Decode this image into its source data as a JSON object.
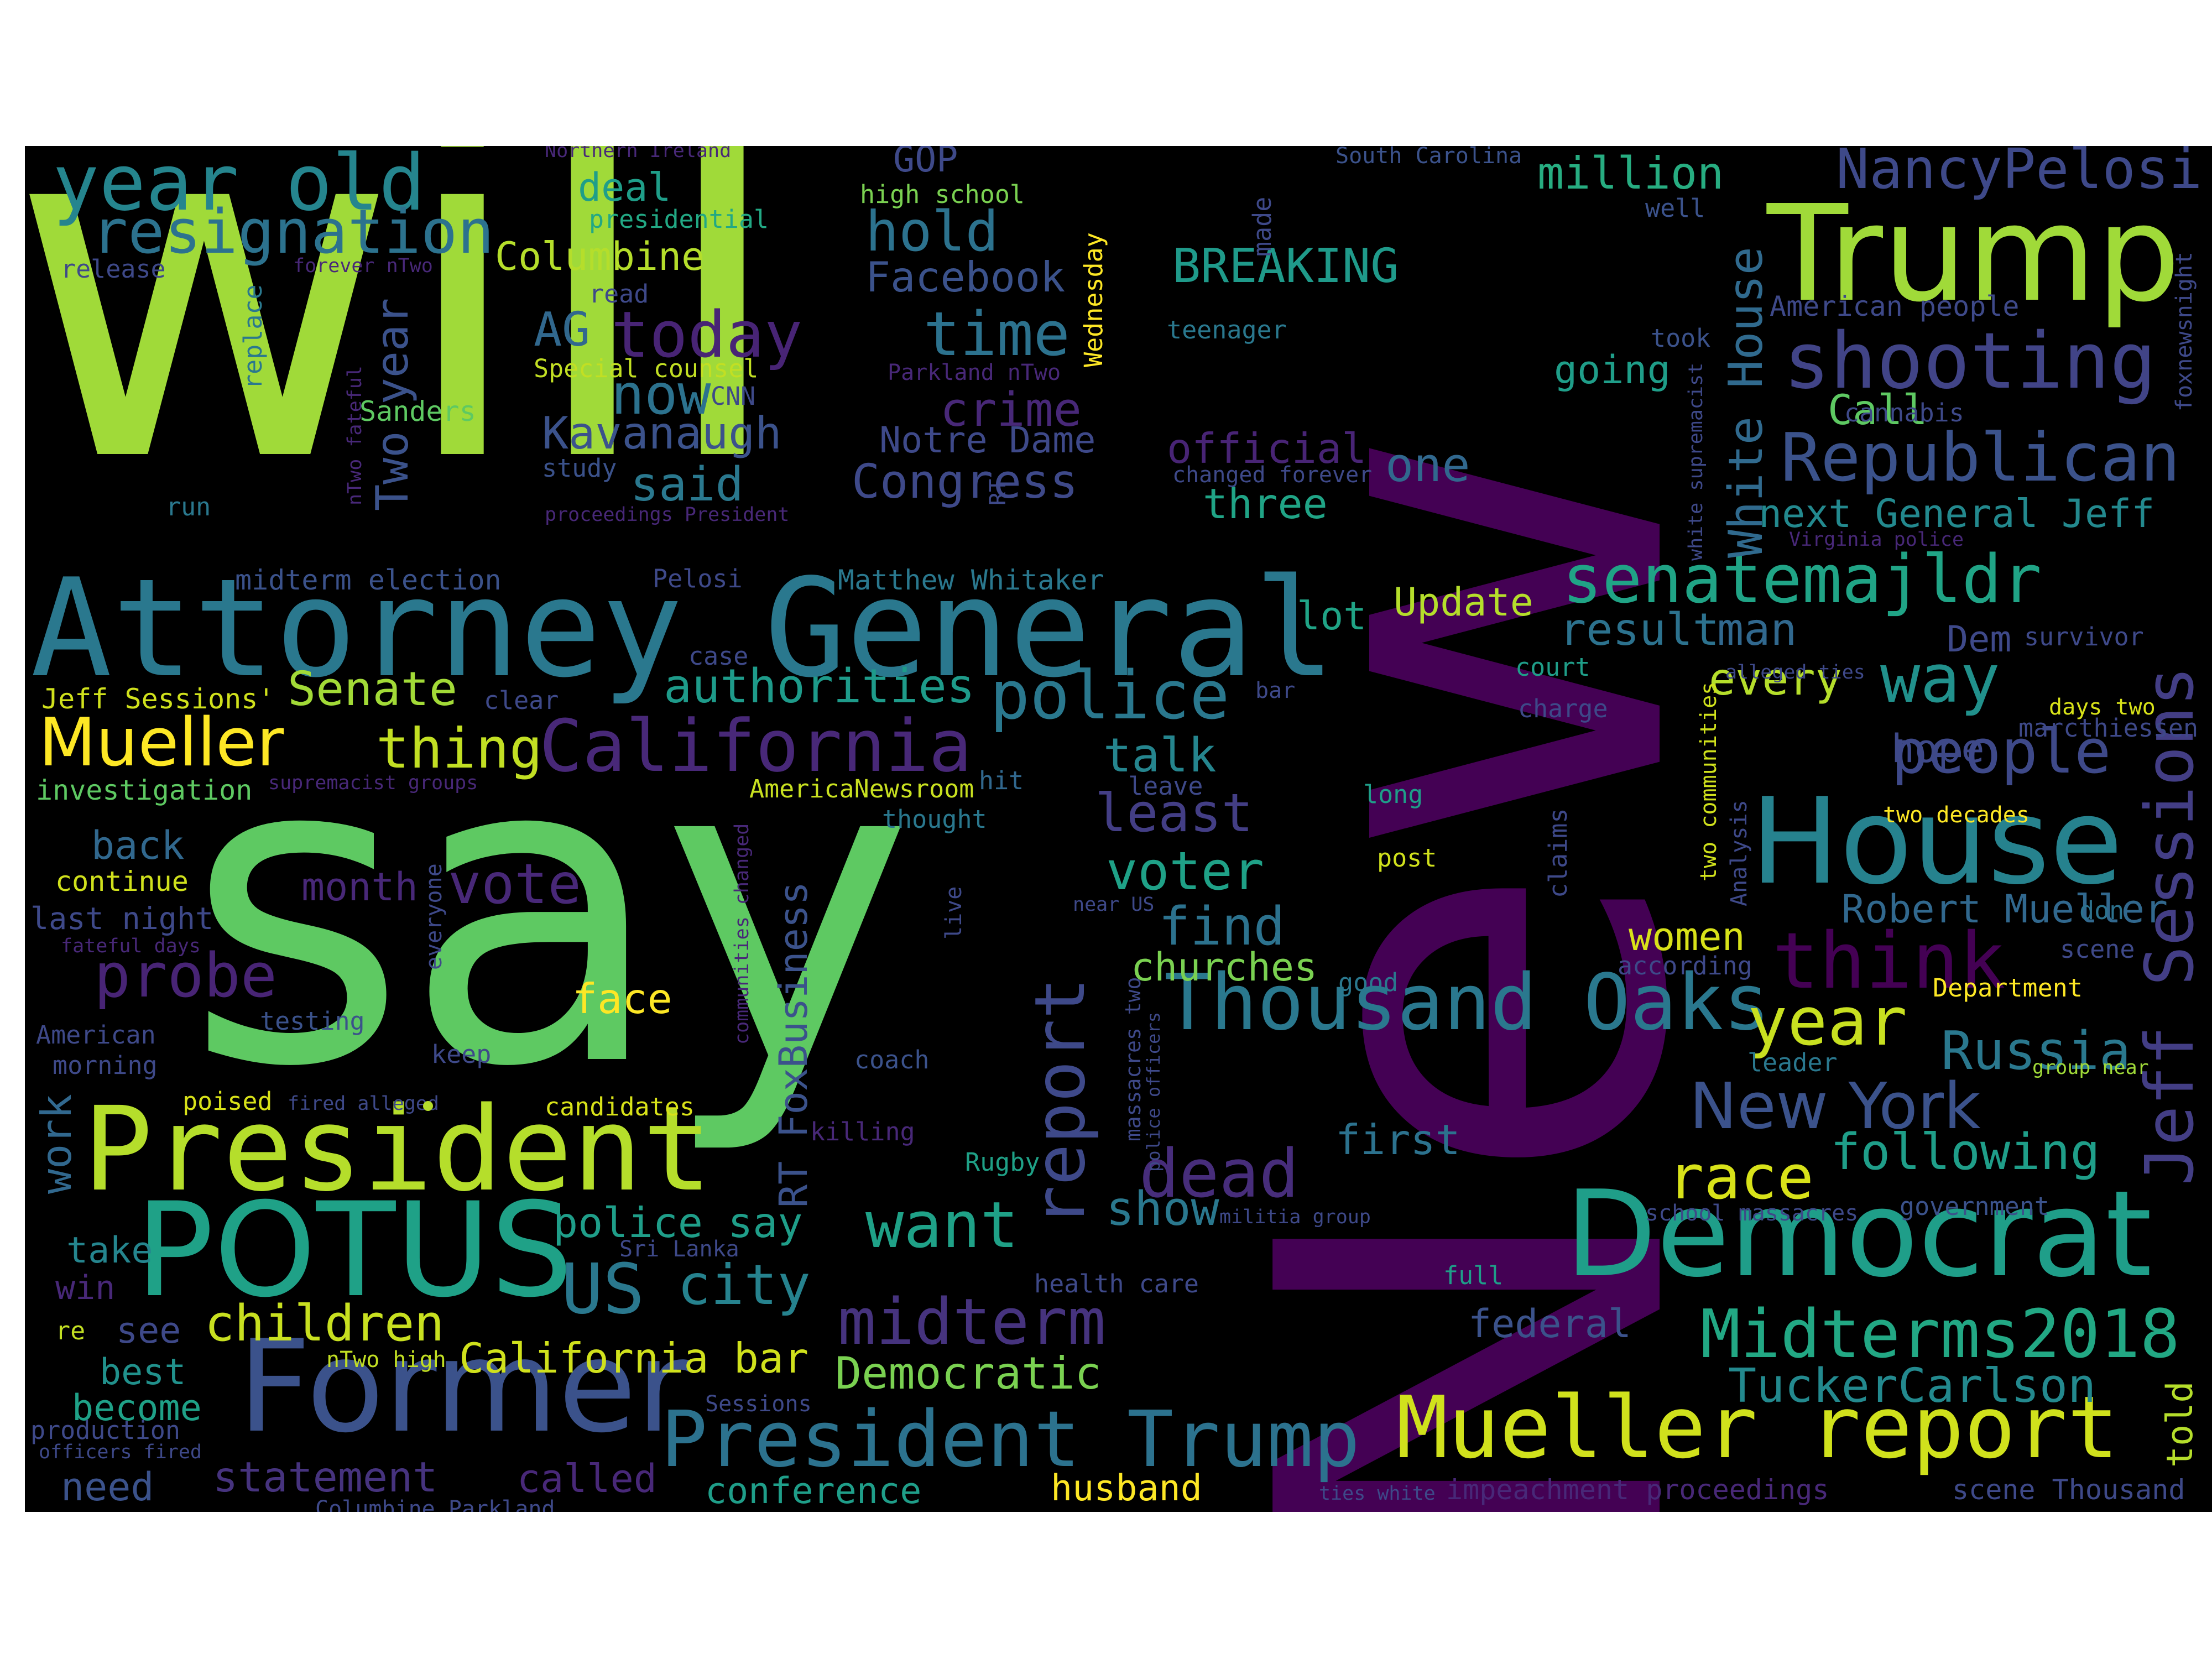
{
  "words": [
    {
      "text": "will",
      "color": "#a0da39"
    },
    {
      "text": "New",
      "color": "#440154"
    },
    {
      "text": "say",
      "color": "#5ec962"
    },
    {
      "text": "Attorney General",
      "color": "#2a788e"
    },
    {
      "text": "Trump",
      "color": "#a0da39"
    },
    {
      "text": "President",
      "color": "#b5de2b"
    },
    {
      "text": "POTUS",
      "color": "#1fa187"
    },
    {
      "text": "Democrat",
      "color": "#1f9e89"
    },
    {
      "text": "Former",
      "color": "#3b528b"
    },
    {
      "text": "House",
      "color": "#26828e"
    },
    {
      "text": "Mueller report",
      "color": "#d0e11c"
    },
    {
      "text": "year old",
      "color": "#25858e"
    },
    {
      "text": "resignation",
      "color": "#2c728e"
    },
    {
      "text": "shooting",
      "color": "#414487"
    },
    {
      "text": "Republican",
      "color": "#3b528b"
    },
    {
      "text": "senatemajldr",
      "color": "#20a486"
    },
    {
      "text": "NancyPelosi",
      "color": "#3e4989"
    },
    {
      "text": "California",
      "color": "#482878"
    },
    {
      "text": "Mueller",
      "color": "#fde725"
    },
    {
      "text": "think",
      "color": "#440154"
    },
    {
      "text": "Thousand Oaks",
      "color": "#2a788e"
    },
    {
      "text": "President Trump",
      "color": "#2c728e"
    },
    {
      "text": "Midterms2018",
      "color": "#22a884"
    },
    {
      "text": "New York",
      "color": "#3b528b"
    },
    {
      "text": "police",
      "color": "#2a788e"
    },
    {
      "text": "dead",
      "color": "#472d7b"
    },
    {
      "text": "midterm",
      "color": "#46337e"
    },
    {
      "text": "people",
      "color": "#3e4989"
    },
    {
      "text": "year",
      "color": "#c8e020"
    },
    {
      "text": "race",
      "color": "#d8e219"
    },
    {
      "text": "today",
      "color": "#482475"
    },
    {
      "text": "time",
      "color": "#2c728e"
    },
    {
      "text": "now",
      "color": "#2c728e"
    },
    {
      "text": "report",
      "color": "#3e4989"
    },
    {
      "text": "want",
      "color": "#1fa187"
    },
    {
      "text": "Jeff Sessions",
      "color": "#433e85"
    },
    {
      "text": "White House",
      "color": "#306a8e"
    },
    {
      "text": "way",
      "color": "#21918c"
    },
    {
      "text": "hold",
      "color": "#2c728e"
    },
    {
      "text": "probe",
      "color": "#482475"
    },
    {
      "text": "Senate",
      "color": "#a2da37"
    },
    {
      "text": "thing",
      "color": "#c2df23"
    },
    {
      "text": "authorities",
      "color": "#1e9b8a"
    },
    {
      "text": "BREAKING",
      "color": "#1f9a8a"
    },
    {
      "text": "Congress",
      "color": "#3e4989"
    },
    {
      "text": "Kavanaugh",
      "color": "#3b528b"
    },
    {
      "text": "said",
      "color": "#2a788e"
    },
    {
      "text": "crime",
      "color": "#482878"
    },
    {
      "text": "official",
      "color": "#482475"
    },
    {
      "text": "Notre Dame",
      "color": "#3e4989"
    },
    {
      "text": "Facebook",
      "color": "#3b528b"
    },
    {
      "text": "Columbine",
      "color": "#b5de2b"
    },
    {
      "text": "million",
      "color": "#27ad81"
    },
    {
      "text": "American people",
      "color": "#3e4989"
    },
    {
      "text": "next General Jeff",
      "color": "#23898e"
    },
    {
      "text": "Update",
      "color": "#b5de2b"
    },
    {
      "text": "result",
      "color": "#2c728e"
    },
    {
      "text": "man",
      "color": "#31688e"
    },
    {
      "text": "every",
      "color": "#b5de2b"
    },
    {
      "text": "lot",
      "color": "#20a486"
    },
    {
      "text": "talk",
      "color": "#25858e"
    },
    {
      "text": "least",
      "color": "#433e85"
    },
    {
      "text": "voter",
      "color": "#1fa187"
    },
    {
      "text": "find",
      "color": "#2c728e"
    },
    {
      "text": "churches",
      "color": "#7ad151"
    },
    {
      "text": "women",
      "color": "#d8e219"
    },
    {
      "text": "Robert Mueller",
      "color": "#31688e"
    },
    {
      "text": "Russia",
      "color": "#2a788e"
    },
    {
      "text": "following",
      "color": "#1f9e89"
    },
    {
      "text": "first",
      "color": "#2c728e"
    },
    {
      "text": "show",
      "color": "#2a788e"
    },
    {
      "text": "vote",
      "color": "#482878"
    },
    {
      "text": "face",
      "color": "#fde725"
    },
    {
      "text": "children",
      "color": "#c8e020"
    },
    {
      "text": "city",
      "color": "#26828e"
    },
    {
      "text": "US",
      "color": "#2a788e"
    },
    {
      "text": "Democratic",
      "color": "#7ad151"
    },
    {
      "text": "California bar",
      "color": "#d0e11c"
    },
    {
      "text": "statement",
      "color": "#46337e"
    },
    {
      "text": "called",
      "color": "#482878"
    },
    {
      "text": "conference",
      "color": "#1f9e89"
    },
    {
      "text": "husband",
      "color": "#fde725"
    },
    {
      "text": "TuckerCarlson",
      "color": "#23898e"
    },
    {
      "text": "federal",
      "color": "#3b528b"
    },
    {
      "text": "police say",
      "color": "#1f9e89"
    },
    {
      "text": "RT FoxBusiness",
      "color": "#3b528b"
    },
    {
      "text": "work",
      "color": "#31688e"
    },
    {
      "text": "month",
      "color": "#482878"
    },
    {
      "text": "back",
      "color": "#31688e"
    },
    {
      "text": "take",
      "color": "#25858e"
    },
    {
      "text": "win",
      "color": "#482878"
    },
    {
      "text": "see",
      "color": "#3e4989"
    },
    {
      "text": "best",
      "color": "#21918c"
    },
    {
      "text": "become",
      "color": "#1fa187"
    },
    {
      "text": "need",
      "color": "#3b528b"
    },
    {
      "text": "Two year",
      "color": "#3b528b"
    },
    {
      "text": "AG",
      "color": "#31688e"
    },
    {
      "text": "deal",
      "color": "#1f9e89"
    },
    {
      "text": "going",
      "color": "#1f9e89"
    },
    {
      "text": "one",
      "color": "#31688e"
    },
    {
      "text": "three",
      "color": "#20a486"
    },
    {
      "text": "GOP",
      "color": "#3e4989"
    },
    {
      "text": "Call",
      "color": "#5ec962"
    },
    {
      "text": "Dem",
      "color": "#3e4989"
    },
    {
      "text": "hope",
      "color": "#3e4989"
    },
    {
      "text": "told",
      "color": "#b5de2b"
    },
    {
      "text": "Jeff Sessions'",
      "color": "#d0e11c"
    },
    {
      "text": "investigation",
      "color": "#5ec962"
    },
    {
      "text": "Matthew Whitaker",
      "color": "#2a788e"
    },
    {
      "text": "midterm election",
      "color": "#3b528b"
    },
    {
      "text": "continue",
      "color": "#d0e11c"
    },
    {
      "text": "last night",
      "color": "#3e4989"
    },
    {
      "text": "Sanders",
      "color": "#5ec962"
    },
    {
      "text": "Special counsel",
      "color": "#c2df23"
    },
    {
      "text": "presidential",
      "color": "#22a884"
    },
    {
      "text": "high school",
      "color": "#7ad151"
    },
    {
      "text": "release",
      "color": "#3e4989"
    },
    {
      "text": "read",
      "color": "#3e4989"
    },
    {
      "text": "CNN",
      "color": "#3e4989"
    },
    {
      "text": "study",
      "color": "#3b528b"
    },
    {
      "text": "run",
      "color": "#2a788e"
    },
    {
      "text": "replace",
      "color": "#2a788e"
    },
    {
      "text": "Wednesday",
      "color": "#fde725"
    },
    {
      "text": "made",
      "color": "#3e4989"
    },
    {
      "text": "teenager",
      "color": "#2a788e"
    },
    {
      "text": "took",
      "color": "#3b528b"
    },
    {
      "text": "cannabis",
      "color": "#3e4989"
    },
    {
      "text": "well",
      "color": "#3b528b"
    },
    {
      "text": "court",
      "color": "#1f9e89"
    },
    {
      "text": "charge",
      "color": "#3e4989"
    },
    {
      "text": "survivor",
      "color": "#3e4989"
    },
    {
      "text": "marcthiessen",
      "color": "#3e4989"
    },
    {
      "text": "days two",
      "color": "#d8e219"
    },
    {
      "text": "two decades",
      "color": "#fde725"
    },
    {
      "text": "scene",
      "color": "#3e4989"
    },
    {
      "text": "don",
      "color": "#2c728e"
    },
    {
      "text": "Department",
      "color": "#fde725"
    },
    {
      "text": "leader",
      "color": "#2a788e"
    },
    {
      "text": "government",
      "color": "#3b528b"
    },
    {
      "text": "group near",
      "color": "#a0da39"
    },
    {
      "text": "long",
      "color": "#1f9e89"
    },
    {
      "text": "post",
      "color": "#d0e11c"
    },
    {
      "text": "good",
      "color": "#2a788e"
    },
    {
      "text": "full",
      "color": "#1f9e89"
    },
    {
      "text": "according",
      "color": "#3e4989"
    },
    {
      "text": "AmericaNewsroom",
      "color": "#c8e020"
    },
    {
      "text": "thought",
      "color": "#2a788e"
    },
    {
      "text": "hit",
      "color": "#31688e"
    },
    {
      "text": "leave",
      "color": "#3e4989"
    },
    {
      "text": "coach",
      "color": "#3b528b"
    },
    {
      "text": "Rugby",
      "color": "#1fa187"
    },
    {
      "text": "killing",
      "color": "#482878"
    },
    {
      "text": "testing",
      "color": "#3b528b"
    },
    {
      "text": "keep",
      "color": "#3e4989"
    },
    {
      "text": "morning",
      "color": "#3e4989"
    },
    {
      "text": "American",
      "color": "#3e4989"
    },
    {
      "text": "poised",
      "color": "#d8e219"
    },
    {
      "text": "fired alleged",
      "color": "#3e4989"
    },
    {
      "text": "candidates",
      "color": "#d8e219"
    },
    {
      "text": "health care",
      "color": "#3e4989"
    },
    {
      "text": "Sri Lanka",
      "color": "#3e4989"
    },
    {
      "text": "re",
      "color": "#c2df23"
    },
    {
      "text": "nTwo high",
      "color": "#c2df23"
    },
    {
      "text": "Sessions",
      "color": "#3e4989"
    },
    {
      "text": "production",
      "color": "#3e4989"
    },
    {
      "text": "officers fired",
      "color": "#3e4989"
    },
    {
      "text": "Columbine Parkland",
      "color": "#3e4989"
    },
    {
      "text": "ties white",
      "color": "#3e4989"
    },
    {
      "text": "impeachment proceedings",
      "color": "#482878"
    },
    {
      "text": "scene Thousand",
      "color": "#3e4989"
    },
    {
      "text": "school massacres",
      "color": "#3e4989"
    },
    {
      "text": "militia group",
      "color": "#3e4989"
    },
    {
      "text": "Northern Ireland",
      "color": "#482878"
    },
    {
      "text": "South Carolina",
      "color": "#3b528b"
    },
    {
      "text": "forever nTwo",
      "color": "#482878"
    },
    {
      "text": "Parkland nTwo",
      "color": "#482878"
    },
    {
      "text": "changed forever",
      "color": "#3e4989"
    },
    {
      "text": "proceedings President",
      "color": "#482878"
    },
    {
      "text": "Pelosi",
      "color": "#3e4989"
    },
    {
      "text": "case",
      "color": "#3e4989"
    },
    {
      "text": "clear",
      "color": "#3e4989"
    },
    {
      "text": "supremacist groups",
      "color": "#482878"
    },
    {
      "text": "fateful days",
      "color": "#482878"
    },
    {
      "text": "nTwo fateful",
      "color": "#482878"
    },
    {
      "text": "Virginia police",
      "color": "#482878"
    },
    {
      "text": "alleged ties",
      "color": "#3e4989"
    },
    {
      "text": "bar",
      "color": "#3e4989"
    },
    {
      "text": "near US",
      "color": "#3e4989"
    },
    {
      "text": "RT",
      "color": "#3e4989"
    },
    {
      "text": "white supremacist",
      "color": "#3e4989"
    },
    {
      "text": "foxnewsnight",
      "color": "#3e4989"
    },
    {
      "text": "two communities",
      "color": "#d0e11c"
    },
    {
      "text": "Analysis",
      "color": "#3e4989"
    },
    {
      "text": "claims",
      "color": "#3e4989"
    },
    {
      "text": "communities changed",
      "color": "#482878"
    },
    {
      "text": "massacres two",
      "color": "#3e4989"
    },
    {
      "text": "police officers",
      "color": "#3e4989"
    },
    {
      "text": "live",
      "color": "#3e4989"
    },
    {
      "text": "everyone",
      "color": "#3e4989"
    }
  ]
}
